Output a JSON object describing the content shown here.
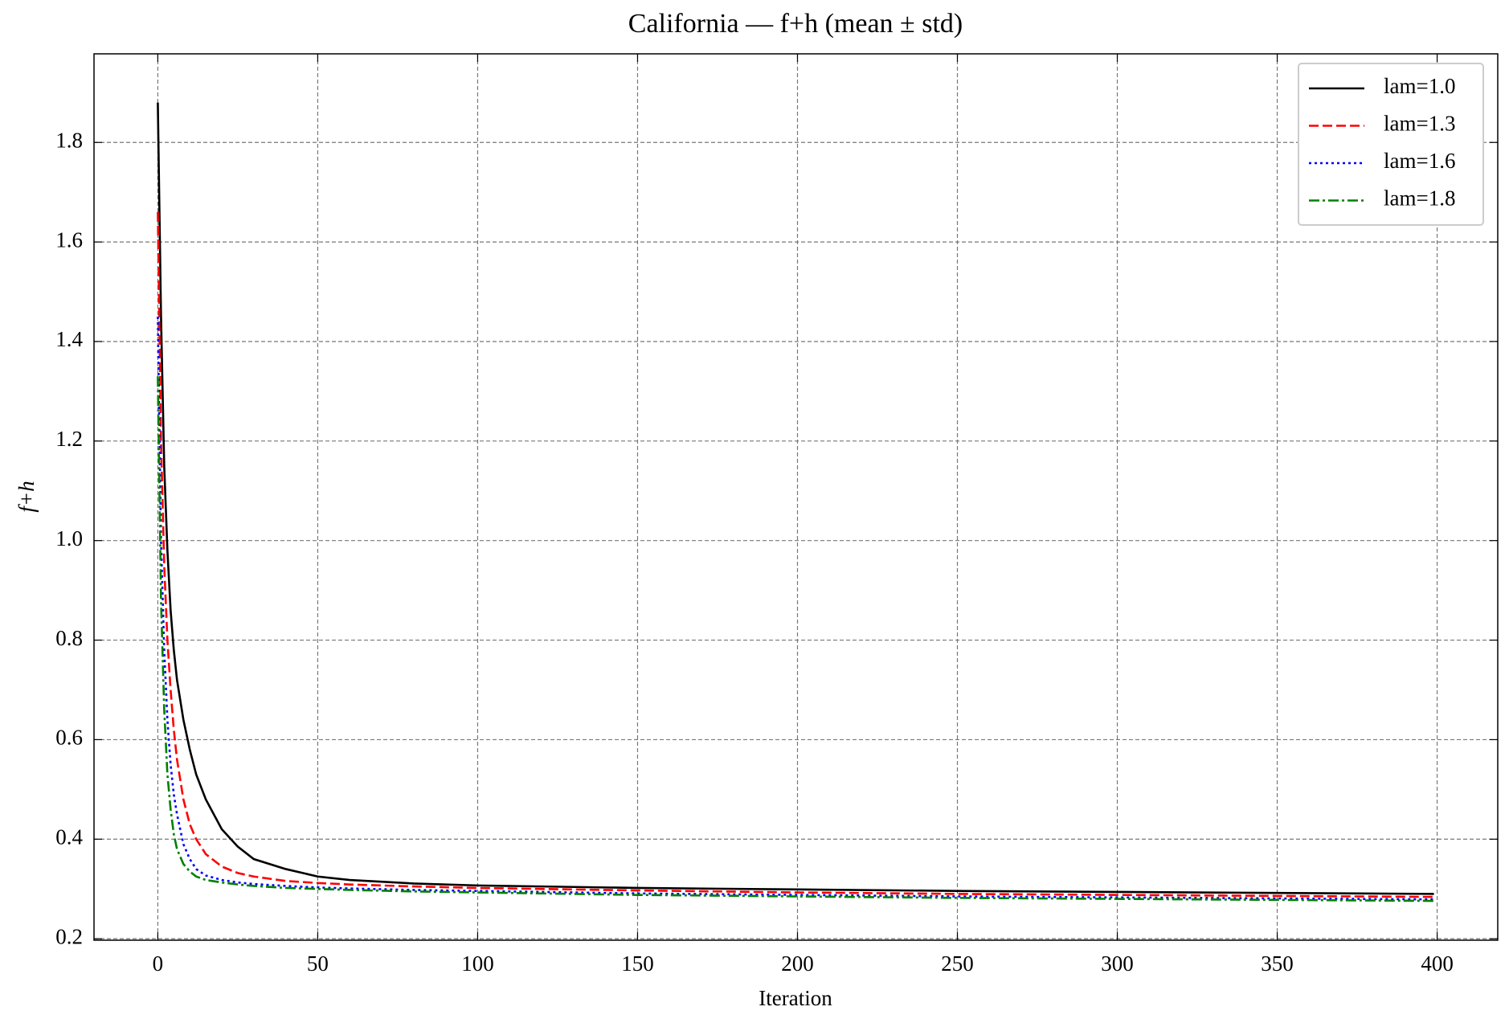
{
  "chart_data": {
    "type": "line",
    "title": "California — f+h (mean ± std)",
    "x_label": "Iteration",
    "y_label": "f+h",
    "x": [
      0,
      1,
      2,
      3,
      4,
      5,
      6,
      8,
      10,
      12,
      15,
      20,
      25,
      30,
      40,
      50,
      60,
      80,
      100,
      150,
      200,
      250,
      300,
      350,
      399
    ],
    "series": [
      {
        "name": "lam=1.0",
        "color": "#000000",
        "linestyle": "solid",
        "values": [
          1.88,
          1.45,
          1.15,
          0.98,
          0.86,
          0.78,
          0.72,
          0.64,
          0.58,
          0.53,
          0.48,
          0.42,
          0.385,
          0.36,
          0.34,
          0.325,
          0.318,
          0.311,
          0.307,
          0.302,
          0.299,
          0.296,
          0.294,
          0.292,
          0.29
        ]
      },
      {
        "name": "lam=1.3",
        "color": "#ff0000",
        "linestyle": "dashed",
        "values": [
          1.66,
          1.2,
          0.95,
          0.8,
          0.7,
          0.62,
          0.56,
          0.48,
          0.43,
          0.4,
          0.37,
          0.345,
          0.332,
          0.325,
          0.316,
          0.312,
          0.309,
          0.305,
          0.302,
          0.297,
          0.293,
          0.29,
          0.288,
          0.286,
          0.284
        ]
      },
      {
        "name": "lam=1.6",
        "color": "#0000ff",
        "linestyle": "dotted",
        "values": [
          1.45,
          1.0,
          0.78,
          0.64,
          0.55,
          0.49,
          0.45,
          0.39,
          0.36,
          0.34,
          0.327,
          0.318,
          0.313,
          0.31,
          0.306,
          0.303,
          0.301,
          0.298,
          0.296,
          0.291,
          0.288,
          0.285,
          0.283,
          0.281,
          0.279
        ]
      },
      {
        "name": "lam=1.8",
        "color": "#008000",
        "linestyle": "dashdot",
        "values": [
          1.33,
          0.88,
          0.66,
          0.53,
          0.46,
          0.41,
          0.38,
          0.35,
          0.335,
          0.325,
          0.318,
          0.313,
          0.309,
          0.306,
          0.302,
          0.3,
          0.298,
          0.295,
          0.293,
          0.288,
          0.285,
          0.282,
          0.28,
          0.278,
          0.276
        ]
      }
    ],
    "xlim": [
      -19.95,
      418.95
    ],
    "xticks": [
      0,
      50,
      100,
      150,
      200,
      250,
      300,
      350,
      400
    ],
    "ylim": [
      0.197,
      1.978
    ],
    "yticks": [
      0.2,
      0.4,
      0.6,
      0.8,
      1.0,
      1.2,
      1.4,
      1.6,
      1.8
    ],
    "grid": true,
    "legend": "upper right"
  }
}
